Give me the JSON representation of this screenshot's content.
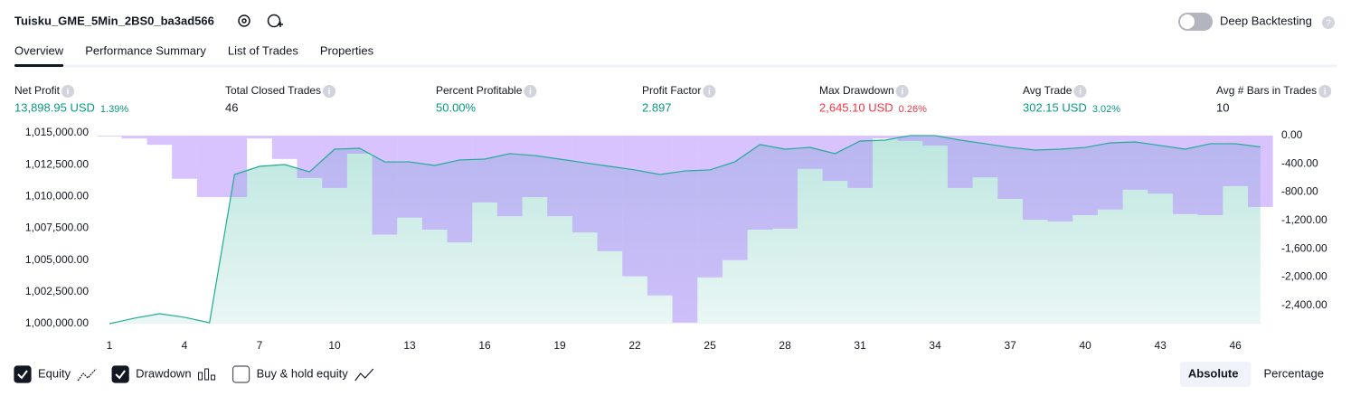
{
  "header": {
    "title": "Tuisku_GME_5Min_2BS0_ba3ad566",
    "deep_backtesting": "Deep Backtesting"
  },
  "tabs": [
    "Overview",
    "Performance Summary",
    "List of Trades",
    "Properties"
  ],
  "metrics": [
    {
      "label": "Net Profit",
      "value": "13,898.95 USD",
      "sub": "1.39%",
      "tone": "positive"
    },
    {
      "label": "Total Closed Trades",
      "value": "46",
      "tone": "neutral"
    },
    {
      "label": "Percent Profitable",
      "value": "50.00%",
      "tone": "positive"
    },
    {
      "label": "Profit Factor",
      "value": "2.897",
      "tone": "positive"
    },
    {
      "label": "Max Drawdown",
      "value": "2,645.10 USD",
      "sub": "0.26%",
      "tone": "negative"
    },
    {
      "label": "Avg Trade",
      "value": "302.15 USD",
      "sub": "3.02%",
      "tone": "positive"
    },
    {
      "label": "Avg # Bars in Trades",
      "value": "10",
      "tone": "neutral"
    }
  ],
  "chart_data": {
    "type": "combo",
    "x": [
      1,
      2,
      3,
      4,
      5,
      6,
      7,
      8,
      9,
      10,
      11,
      12,
      13,
      14,
      15,
      16,
      17,
      18,
      19,
      20,
      21,
      22,
      23,
      24,
      25,
      26,
      27,
      28,
      29,
      30,
      31,
      32,
      33,
      34,
      35,
      36,
      37,
      38,
      39,
      40,
      41,
      42,
      43,
      44,
      45,
      46,
      47
    ],
    "xlim": [
      0.5,
      47.5
    ],
    "xticks": [
      1,
      4,
      7,
      10,
      13,
      16,
      19,
      22,
      25,
      28,
      31,
      34,
      37,
      40,
      43,
      46
    ],
    "ylim": [
      1000000,
      1015000
    ],
    "yticks": [
      {
        "value": 1000000,
        "label": "1,000,000.00"
      },
      {
        "value": 1002500,
        "label": "1,002,500.00"
      },
      {
        "value": 1005000,
        "label": "1,005,000.00"
      },
      {
        "value": 1007500,
        "label": "1,007,500.00"
      },
      {
        "value": 1010000,
        "label": "1,010,000.00"
      },
      {
        "value": 1012500,
        "label": "1,012,500.00"
      },
      {
        "value": 1015000,
        "label": "1,015,000.00"
      }
    ],
    "y2lim": [
      -2660,
      0
    ],
    "y2ticks": [
      {
        "value": 0,
        "label": "0.00"
      },
      {
        "value": -400,
        "label": "-400.00"
      },
      {
        "value": -800,
        "label": "-800.00"
      },
      {
        "value": -1200,
        "label": "-1,200.00"
      },
      {
        "value": -1600,
        "label": "-1,600.00"
      },
      {
        "value": -2000,
        "label": "-2,000.00"
      },
      {
        "value": -2400,
        "label": "-2,400.00"
      }
    ],
    "series": [
      {
        "name": "Equity",
        "type": "area",
        "color": "#22ab94",
        "axis": "y",
        "values": [
          1000000,
          1000430,
          1000780,
          1000500,
          1000070,
          1011730,
          1012370,
          1012510,
          1011940,
          1013720,
          1013790,
          1012720,
          1012720,
          1012440,
          1012870,
          1012940,
          1013370,
          1013220,
          1012940,
          1012650,
          1012370,
          1012090,
          1011730,
          1012010,
          1012090,
          1012730,
          1014080,
          1013720,
          1013860,
          1013370,
          1014360,
          1014430,
          1014790,
          1014790,
          1014430,
          1014150,
          1013860,
          1013650,
          1013720,
          1013860,
          1014220,
          1014290,
          1014010,
          1013720,
          1014150,
          1014150,
          1013898.95
        ]
      },
      {
        "name": "Drawdown",
        "type": "bar",
        "color": "#b388ff",
        "axis": "y2",
        "values": [
          -10,
          -40,
          -130,
          -610,
          -870,
          -870,
          -40,
          -330,
          -600,
          -740,
          -255,
          -1400,
          -1160,
          -1330,
          -1510,
          -945,
          -1140,
          -870,
          -1140,
          -1370,
          -1635,
          -1990,
          -2260,
          -2645.1,
          -2005,
          -1760,
          -1330,
          -1315,
          -470,
          -640,
          -740,
          -40,
          -75,
          -140,
          -740,
          -590,
          -895,
          -1190,
          -1215,
          -1125,
          -1045,
          -765,
          -820,
          -1110,
          -1125,
          -715,
          -1010
        ]
      }
    ]
  },
  "controls": {
    "checkboxes": [
      {
        "label": "Equity",
        "checked": true
      },
      {
        "label": "Drawdown",
        "checked": true
      },
      {
        "label": "Buy & hold equity",
        "checked": false
      }
    ],
    "modes": [
      "Absolute",
      "Percentage"
    ],
    "active_mode": 0
  }
}
